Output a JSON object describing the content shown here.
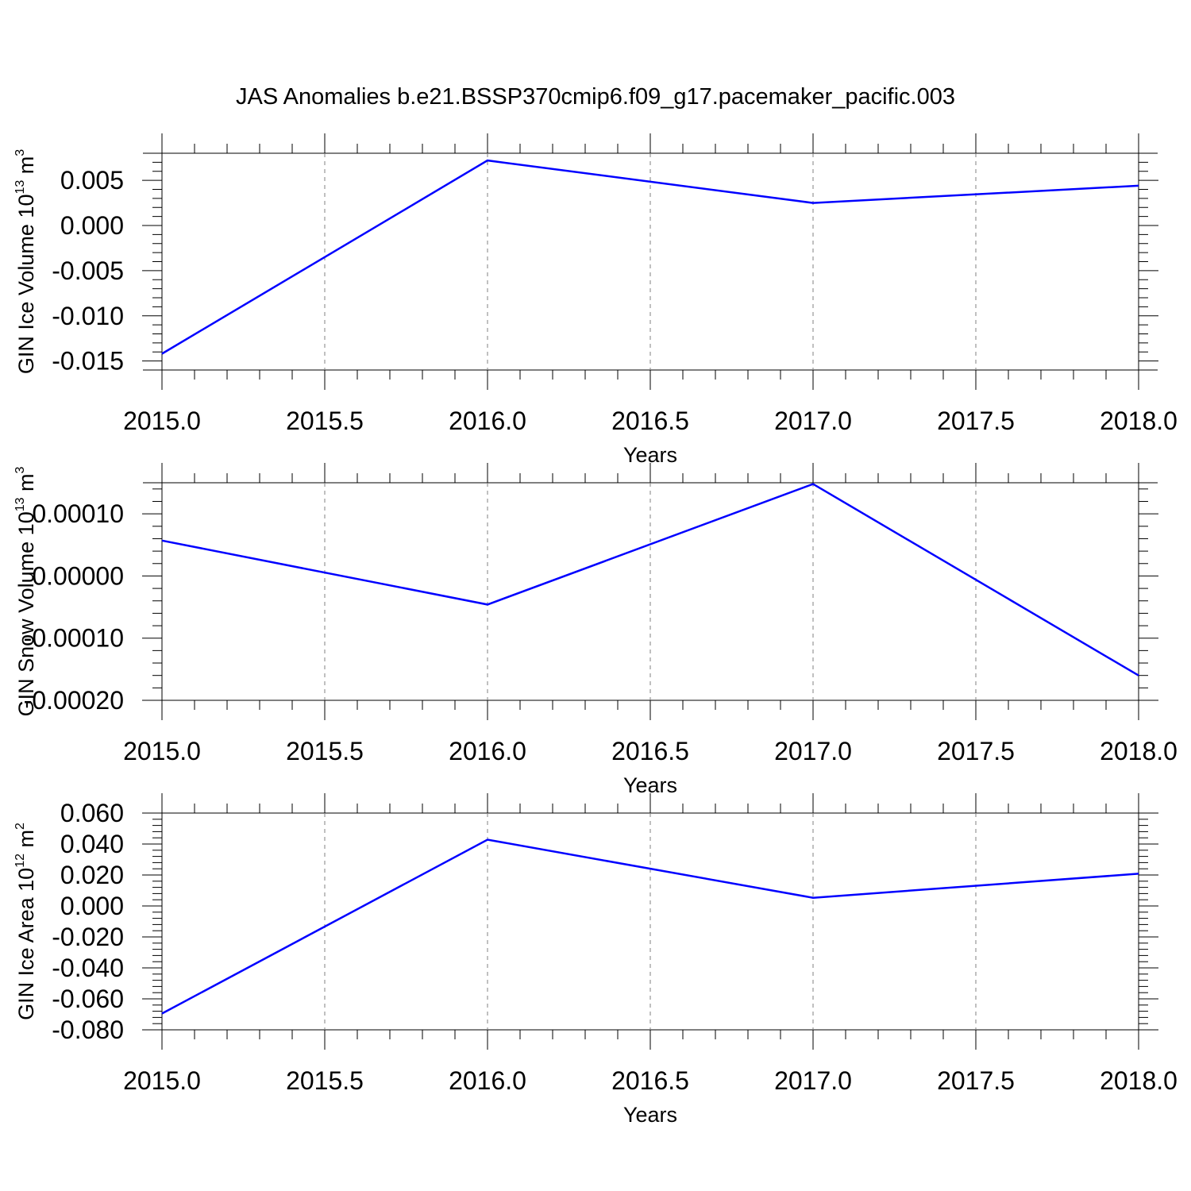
{
  "figure": {
    "title": "JAS Anomalies b.e21.BSSP370cmip6.f09_g17.pacemaker_pacific.003"
  },
  "chart_data": [
    {
      "type": "line",
      "xlabel": "Years",
      "ylabel": {
        "text": "GIN Ice Volume 10",
        "exp": "13",
        "unit": "m",
        "unit_exp": "3"
      },
      "xlim": [
        2015.0,
        2018.0
      ],
      "ylim": [
        -0.016,
        0.008
      ],
      "x_ticks": [
        "2015.0",
        "2015.5",
        "2016.0",
        "2016.5",
        "2017.0",
        "2017.5",
        "2018.0"
      ],
      "y_ticks": [
        {
          "value": 0.005,
          "label": "0.005"
        },
        {
          "value": 0.0,
          "label": "0.000"
        },
        {
          "value": -0.005,
          "label": "-0.005"
        },
        {
          "value": -0.01,
          "label": "-0.010"
        },
        {
          "value": -0.015,
          "label": "-0.015"
        }
      ],
      "series": [
        {
          "x": [
            2015,
            2016,
            2017,
            2018
          ],
          "values": [
            -0.0142,
            0.0072,
            0.0025,
            0.0044
          ],
          "color": "#0000ff"
        }
      ],
      "grid": "vertical dashed"
    },
    {
      "type": "line",
      "xlabel": "Years",
      "ylabel": {
        "text": "GIN Snow Volume 10",
        "exp": "13",
        "unit": "m",
        "unit_exp": "3"
      },
      "xlim": [
        2015.0,
        2018.0
      ],
      "ylim": [
        -0.0002,
        0.00015
      ],
      "x_ticks": [
        "2015.0",
        "2015.5",
        "2016.0",
        "2016.5",
        "2017.0",
        "2017.5",
        "2018.0"
      ],
      "y_ticks": [
        {
          "value": 0.0001,
          "label": "0.00010"
        },
        {
          "value": 0.0,
          "label": "0.00000"
        },
        {
          "value": -0.0001,
          "label": "-0.00010"
        },
        {
          "value": -0.0002,
          "label": "-0.00020"
        }
      ],
      "series": [
        {
          "x": [
            2015,
            2016,
            2017,
            2018
          ],
          "values": [
            5.7e-05,
            -4.6e-05,
            0.000148,
            -0.00016
          ],
          "color": "#0000ff"
        }
      ],
      "grid": "vertical dashed"
    },
    {
      "type": "line",
      "xlabel": "Years",
      "ylabel": {
        "text": "GIN Ice Area 10",
        "exp": "12",
        "unit": "m",
        "unit_exp": "2"
      },
      "xlim": [
        2015.0,
        2018.0
      ],
      "ylim": [
        -0.08,
        0.06
      ],
      "x_ticks": [
        "2015.0",
        "2015.5",
        "2016.0",
        "2016.5",
        "2017.0",
        "2017.5",
        "2018.0"
      ],
      "y_ticks": [
        {
          "value": 0.06,
          "label": "0.060"
        },
        {
          "value": 0.04,
          "label": "0.040"
        },
        {
          "value": 0.02,
          "label": "0.020"
        },
        {
          "value": 0.0,
          "label": "0.000"
        },
        {
          "value": -0.02,
          "label": "-0.020"
        },
        {
          "value": -0.04,
          "label": "-0.040"
        },
        {
          "value": -0.06,
          "label": "-0.060"
        },
        {
          "value": -0.08,
          "label": "-0.080"
        }
      ],
      "series": [
        {
          "x": [
            2015,
            2016,
            2017,
            2018
          ],
          "values": [
            -0.0695,
            0.0428,
            0.0053,
            0.0208
          ],
          "color": "#0000ff"
        }
      ],
      "grid": "vertical dashed"
    }
  ]
}
